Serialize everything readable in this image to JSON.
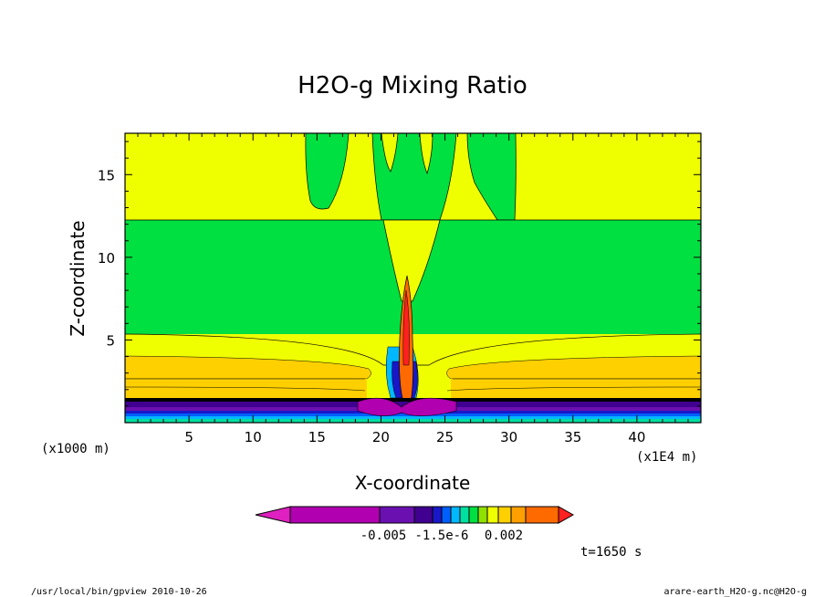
{
  "chart_data": {
    "type": "contour",
    "title": "H2O-g Mixing Ratio",
    "xlabel": "X-coordinate",
    "ylabel": "Z-coordinate",
    "x_unit": "(x1E4 m)",
    "y_unit": "(x1000 m)",
    "xlim": [
      0,
      45
    ],
    "ylim": [
      0,
      17.5
    ],
    "x_ticks": [
      5,
      10,
      15,
      20,
      25,
      30,
      35,
      40
    ],
    "y_ticks": [
      5,
      10,
      15
    ],
    "colorbar": {
      "labels": [
        "-0.005",
        "-1.5e-6",
        "0.002"
      ],
      "colors": [
        "#e020c0",
        "#b000b0",
        "#6a10b0",
        "#400090",
        "#1818c8",
        "#0060ff",
        "#00b8ff",
        "#00e0a0",
        "#00e040",
        "#90e000",
        "#f0ff00",
        "#ffd000",
        "#ffa000",
        "#ff6a00",
        "#ff2020"
      ]
    },
    "field_colors": {
      "background_band": "#f0ff00",
      "mid_band": "#00e040",
      "lower_band": "#ffd000",
      "surface_band": "#400090",
      "core": "#ff6a00"
    }
  },
  "time_label": "t=1650 s",
  "footer": {
    "left": "/usr/local/bin/gpview  2010-10-26",
    "right": "arare-earth_H2O-g.nc@H2O-g"
  }
}
